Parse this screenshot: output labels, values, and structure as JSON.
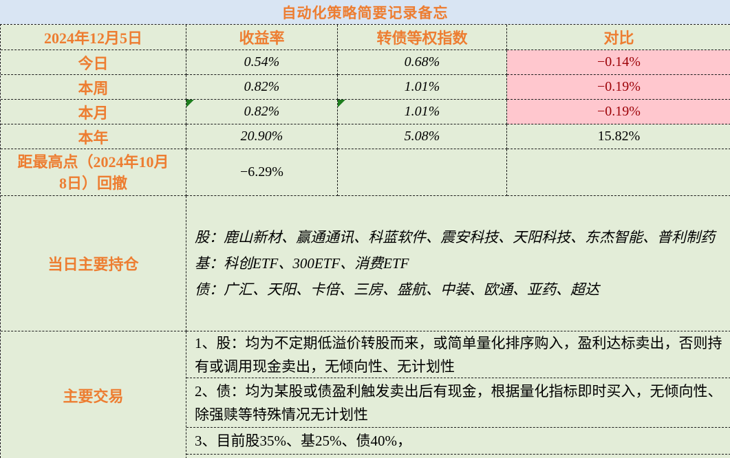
{
  "title": "自动化策略简要记录备忘",
  "table": {
    "date_header": "2024年12月5日",
    "col_headers": [
      "收益率",
      "转债等权指数",
      "对比"
    ],
    "rows": [
      {
        "label": "今日",
        "yield": "0.54%",
        "index": "0.68%",
        "diff": "−0.14%"
      },
      {
        "label": "本周",
        "yield": "0.82%",
        "index": "1.01%",
        "diff": "−0.19%"
      },
      {
        "label": "本月",
        "yield": "0.82%",
        "index": "1.01%",
        "diff": "−0.19%"
      },
      {
        "label": "本年",
        "yield": "20.90%",
        "index": "5.08%",
        "diff": "15.82%"
      },
      {
        "label": "距最高点（2024年10月8日）回撤",
        "yield": "−6.29%",
        "index": "",
        "diff": ""
      }
    ]
  },
  "holdings": {
    "label": "当日主要持仓",
    "lines": [
      "股：鹿山新材、赢通通讯、科蓝软件、震安科技、天阳科技、东杰智能、普利制药",
      "基：科创ETF、300ETF、消费ETF",
      "债：广汇、天阳、卡倍、三房、盛航、中装、欧通、亚药、超达"
    ]
  },
  "trades": {
    "label": "主要交易",
    "items": [
      "1、股：均为不定期低溢价转股而来，或简单量化排序购入，盈利达标卖出，否则持有或调用现金卖出，无倾向性、无计划性",
      "2、债：均为某股或债盈利触发卖出后有现金，根据量化指标即时买入，无倾向性、除强赎等特殊情况无计划性",
      "3、目前股35%、基25%、债40%，"
    ]
  },
  "icons": {
    "error_flag": "green-corner-triangle"
  },
  "colors": {
    "accent_orange": "#ED7D31",
    "title_bg": "#D9E5F3",
    "cell_green": "#E3EDD8",
    "bad_bg": "#FFC7CE",
    "bad_text": "#9C0006",
    "flag_green": "#1E7E1E",
    "border": "#1A1A1A",
    "value_text": "#000000"
  }
}
